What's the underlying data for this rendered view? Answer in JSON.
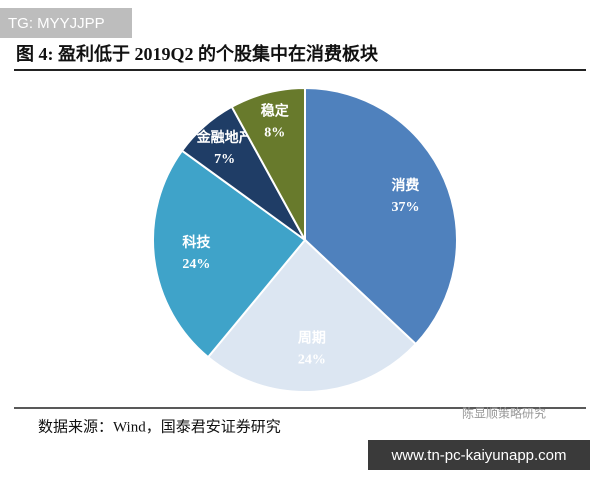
{
  "chart_data": {
    "type": "pie",
    "title": "图 4: 盈利低于 2019Q2 的个股集中在消费板块",
    "categories": [
      "消费",
      "周期",
      "科技",
      "金融地产",
      "稳定"
    ],
    "values": [
      37,
      24,
      24,
      7,
      8
    ],
    "value_labels": [
      "37%",
      "24%",
      "24%",
      "7%",
      "8%"
    ],
    "colors": [
      "#4f81bd",
      "#dce6f2",
      "#3fa3c9",
      "#1f3d66",
      "#687a2c"
    ],
    "source": "数据来源：Wind，国泰君安证券研究"
  },
  "watermarks": {
    "top_left": "TG: MYYJJPP",
    "logo": "陈显顺策略研究",
    "bottom_right": "www.tn-pc-kaiyunapp.com"
  }
}
